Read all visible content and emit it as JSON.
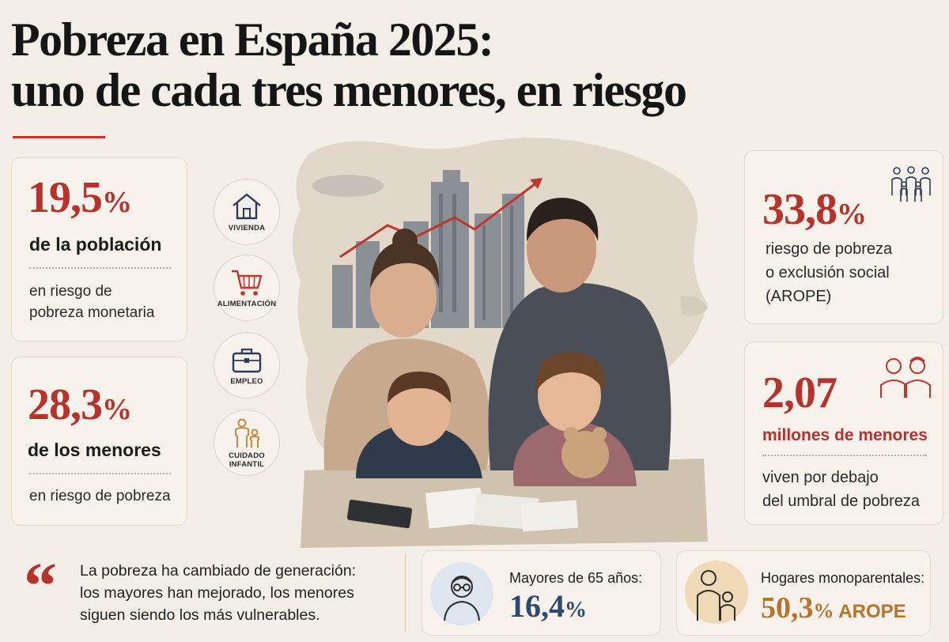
{
  "title": {
    "line1": "Pobreza en España 2025:",
    "line2": "uno de cada tres menores, en riesgo"
  },
  "stats_left": [
    {
      "value": "19,5",
      "unit": "%",
      "label_strong": "de la población",
      "label_line1": "en riesgo de",
      "label_line2": "pobreza monetaria"
    },
    {
      "value": "28,3",
      "unit": "%",
      "label_strong": "de los menores",
      "label_line1": "en riesgo de pobreza",
      "label_line2": ""
    }
  ],
  "categories": [
    {
      "label": "VIVIENDA",
      "icon": "house-icon"
    },
    {
      "label": "ALIMENTACIÓN",
      "icon": "cart-icon"
    },
    {
      "label": "EMPLEO",
      "icon": "briefcase-icon"
    },
    {
      "label": "CUIDADO INFANTIL",
      "icon": "parent-child-icon"
    }
  ],
  "stats_right": [
    {
      "value": "33,8",
      "unit": "%",
      "label_line1": "riesgo de pobreza",
      "label_line2": "o exclusión social",
      "label_line3": "(AROPE)",
      "icon": "family-icon"
    },
    {
      "value": "2,07",
      "label_strong": "millones de menores",
      "label_line1": "viven por debajo",
      "label_line2": "del umbral de pobreza",
      "icon": "children-icon"
    }
  ],
  "quote": {
    "mark": "“",
    "line1": "La pobreza ha cambiado de generación:",
    "line2": "los mayores han mejorado, los menores",
    "line3": "siguen siendo los más vulnerables."
  },
  "bottom_cards": [
    {
      "label": "Mayores de 65 años:",
      "value": "16,4",
      "unit": "%",
      "suffix": "",
      "icon": "elderly-person-icon"
    },
    {
      "label": "Hogares monoparentales:",
      "value": "50,3",
      "unit": "%",
      "suffix": " AROPE",
      "icon": "single-parent-icon"
    }
  ],
  "colors": {
    "accent_red": "#b7322b",
    "accent_gold": "#b8742a",
    "background": "#f3eee7"
  }
}
